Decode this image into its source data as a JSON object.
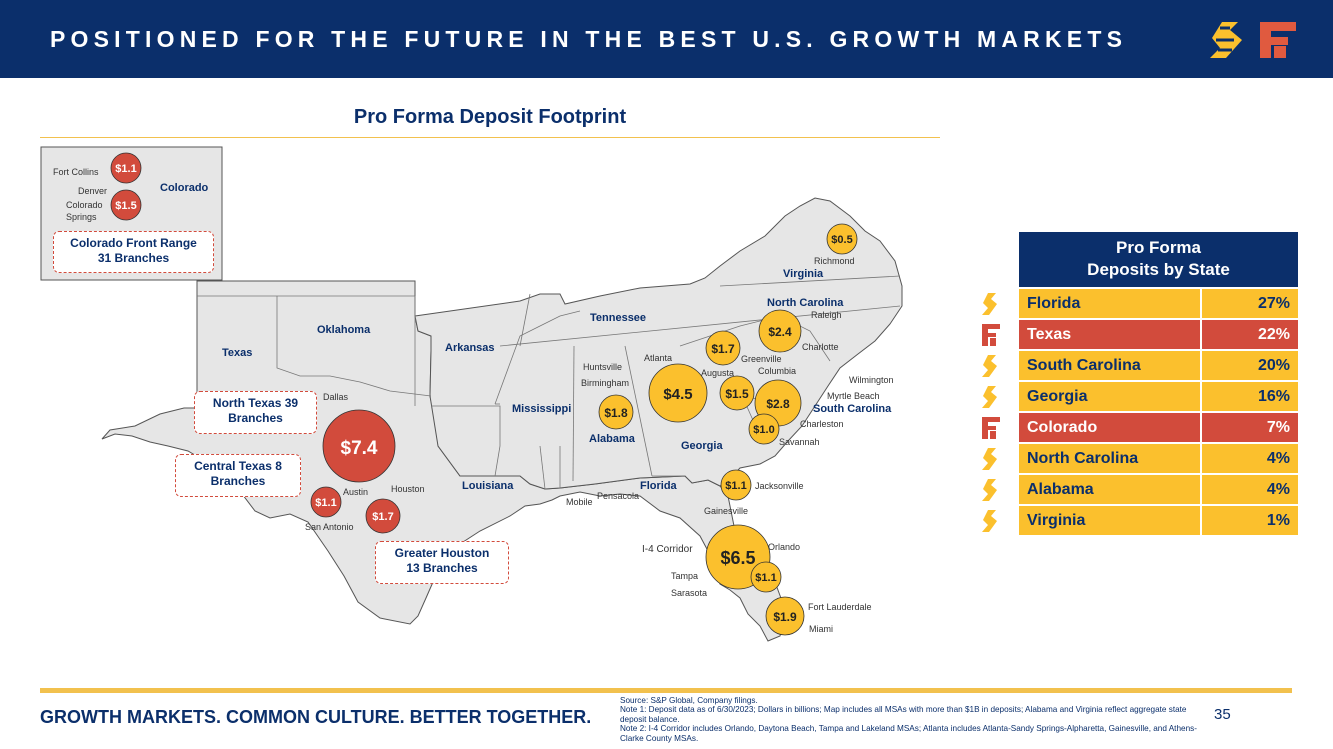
{
  "header": {
    "title": "POSITIONED FOR THE FUTURE IN THE BEST U.S. GROWTH MARKETS"
  },
  "map": {
    "title": "Pro Forma Deposit Footprint",
    "states": {
      "colorado": "Colorado",
      "texas": "Texas",
      "oklahoma": "Oklahoma",
      "arkansas": "Arkansas",
      "louisiana": "Louisiana",
      "mississippi": "Mississippi",
      "tennessee": "Tennessee",
      "alabama": "Alabama",
      "georgia": "Georgia",
      "florida": "Florida",
      "south_carolina": "South Carolina",
      "north_carolina": "North Carolina",
      "virginia": "Virginia"
    },
    "cities": {
      "fort_collins": "Fort Collins",
      "denver": "Denver",
      "colorado_springs_1": "Colorado",
      "colorado_springs_2": "Springs",
      "dallas": "Dallas",
      "austin": "Austin",
      "houston": "Houston",
      "san_antonio": "San Antonio",
      "huntsville": "Huntsville",
      "birmingham": "Birmingham",
      "mobile": "Mobile",
      "pensacola": "Pensacola",
      "atlanta": "Atlanta",
      "augusta": "Augusta",
      "greenville": "Greenville",
      "columbia": "Columbia",
      "charlotte": "Charlotte",
      "raleigh": "Raleigh",
      "richmond": "Richmond",
      "wilmington": "Wilmington",
      "myrtle_beach": "Myrtle Beach",
      "charleston": "Charleston",
      "savannah": "Savannah",
      "jacksonville": "Jacksonville",
      "gainesville": "Gainesville",
      "orlando": "Orlando",
      "i4": "I-4 Corridor",
      "tampa": "Tampa",
      "sarasota": "Sarasota",
      "fort_lauderdale": "Fort Lauderdale",
      "miami": "Miami"
    },
    "bubbles": {
      "fort_collins": "$1.1",
      "denver": "$1.5",
      "dallas": "$7.4",
      "san_antonio": "$1.1",
      "houston": "$1.7",
      "birmingham": "$1.8",
      "atlanta": "$4.5",
      "augusta": "$1.5",
      "greenville": "$1.7",
      "charlotte": "$2.4",
      "richmond": "$0.5",
      "myrtle_beach": "$2.8",
      "savannah": "$1.0",
      "jacksonville": "$1.1",
      "i4": "$6.5",
      "sarasota": "$1.1",
      "miami": "$1.9"
    },
    "callouts": {
      "colorado_1": "Colorado Front Range",
      "colorado_2": "31 Branches",
      "north_texas_1": "North Texas 39",
      "north_texas_2": "Branches",
      "central_texas_1": "Central Texas 8",
      "central_texas_2": "Branches",
      "houston_1": "Greater Houston",
      "houston_2": "13 Branches"
    },
    "colors": {
      "texas_bubble": "#d24b3c",
      "sfnc_bubble": "#fbc02d"
    }
  },
  "deposits_table": {
    "title_line1": "Pro Forma",
    "title_line2": "Deposits by State",
    "rows": [
      {
        "state": "Florida",
        "pct": "27%",
        "owner": "s",
        "color": "#fbc02d"
      },
      {
        "state": "Texas",
        "pct": "22%",
        "owner": "f",
        "color": "#d24b3c"
      },
      {
        "state": "South Carolina",
        "pct": "20%",
        "owner": "s",
        "color": "#fbc02d"
      },
      {
        "state": "Georgia",
        "pct": "16%",
        "owner": "s",
        "color": "#fbc02d"
      },
      {
        "state": "Colorado",
        "pct": "7%",
        "owner": "f",
        "color": "#d24b3c"
      },
      {
        "state": "North Carolina",
        "pct": "4%",
        "owner": "s",
        "color": "#fbc02d"
      },
      {
        "state": "Alabama",
        "pct": "4%",
        "owner": "s",
        "color": "#fbc02d"
      },
      {
        "state": "Virginia",
        "pct": "1%",
        "owner": "s",
        "color": "#fbc02d"
      }
    ]
  },
  "footer": {
    "tagline": "GROWTH MARKETS. COMMON CULTURE. BETTER TOGETHER.",
    "source": "Source: S&P Global, Company filings.",
    "note1": "Note 1: Deposit data as of 6/30/2023; Dollars in billions; Map includes all MSAs with more than $1B in deposits; Alabama and Virginia reflect aggregate state deposit balance.",
    "note2": "Note 2: I-4 Corridor includes Orlando, Daytona Beach, Tampa and Lakeland MSAs; Atlanta includes Atlanta-Sandy Springs-Alpharetta, Gainesville, and Athens-Clarke County MSAs.",
    "page_number": "35"
  }
}
